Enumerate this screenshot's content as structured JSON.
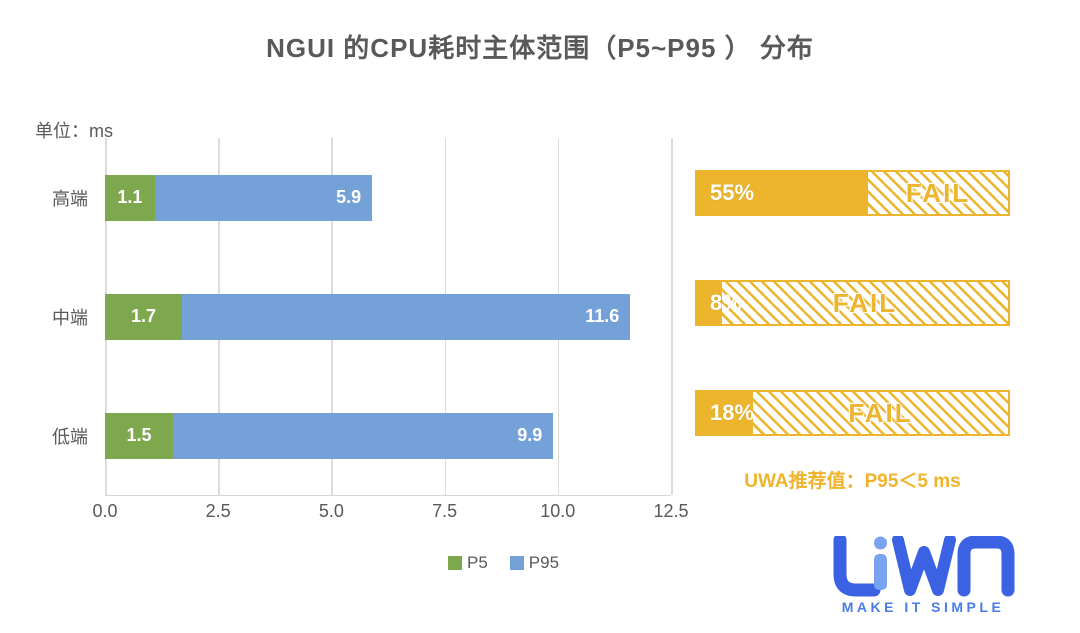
{
  "title": "NGUI 的CPU耗时主体范围（P5~P95 ） 分布",
  "unit_label": "单位：ms",
  "chart_data": {
    "type": "bar",
    "orientation": "horizontal-stacked",
    "categories": [
      "高端",
      "中端",
      "低端"
    ],
    "series": [
      {
        "name": "P5",
        "color": "#7ea84e",
        "values": [
          1.1,
          1.7,
          1.5
        ]
      },
      {
        "name": "P95",
        "color": "#75a1d9",
        "values": [
          5.9,
          11.6,
          9.9
        ]
      }
    ],
    "xlim": [
      0,
      12.5
    ],
    "xticks": [
      "0.0",
      "2.5",
      "5.0",
      "7.5",
      "10.0",
      "12.5"
    ],
    "grid": "vertical",
    "legend_position": "bottom",
    "bar_note": "blue segment spans from P5 value to P95 value"
  },
  "pass_bars": [
    {
      "percent_label": "55%",
      "percent_value": 55,
      "status": "FAIL"
    },
    {
      "percent_label": "8%",
      "percent_value": 8,
      "status": "FAIL"
    },
    {
      "percent_label": "18%",
      "percent_value": 18,
      "status": "FAIL"
    }
  ],
  "recommendation": "UWA推荐值：P95＜5 ms",
  "logo": {
    "name": "UWA",
    "tagline": "MAKE IT SIMPLE"
  },
  "colors": {
    "text": "#595959",
    "p5_green": "#7ea84e",
    "p95_blue": "#75a1d9",
    "warn_yellow": "#edb42e",
    "gridline": "#dcdcdc",
    "logo_blue": "#3a62e3",
    "logo_light_blue": "#79a3f1"
  }
}
